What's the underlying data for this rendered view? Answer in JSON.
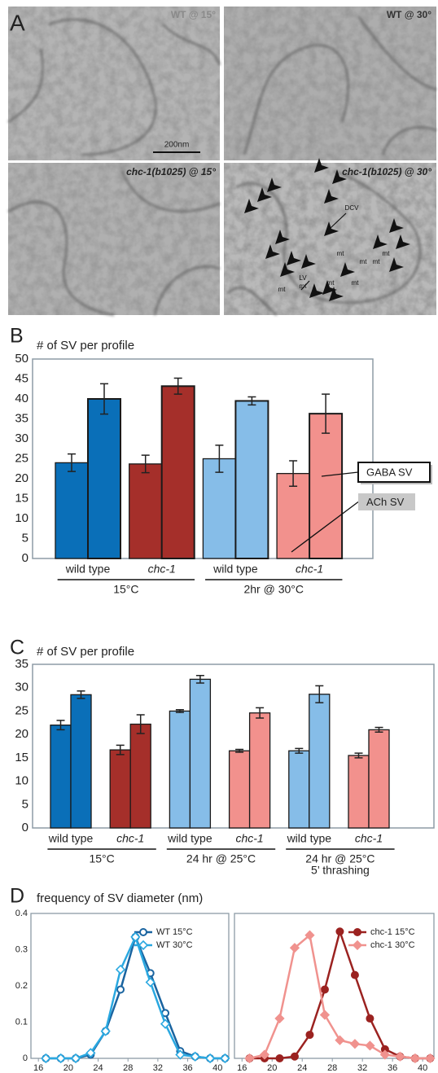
{
  "figure": {
    "panel_labels": [
      "A",
      "B",
      "C",
      "D"
    ]
  },
  "micrographs": {
    "images": [
      "WT @ 15°",
      "WT @ 30°",
      "chc-1(b1025) @ 15°",
      "chc-1(b1025) @ 30°"
    ],
    "scale_bar": "200nm",
    "annotations": [
      "DCV",
      "LV",
      "mt",
      "mt",
      "mt",
      "mt",
      "mt",
      "mt",
      "mt",
      "mt"
    ]
  },
  "chart_data": [
    {
      "type": "bar",
      "title": "# of SV per profile",
      "categories": [
        "wild type",
        "chc-1",
        "wild type",
        "chc-1"
      ],
      "groups": [
        [
          "15°C"
        ],
        [
          "2hr @ 30°C"
        ]
      ],
      "series": [
        {
          "name": "ACh SV",
          "colors": [
            "#0a6fb8",
            "#a52f2a",
            "#86bde8",
            "#f2918d"
          ],
          "values": [
            24,
            23.7,
            25,
            21.3
          ],
          "errors": [
            2.2,
            2.2,
            3.4,
            3.2
          ]
        },
        {
          "name": "GABA SV",
          "colors": [
            "#0a6fb8",
            "#a52f2a",
            "#86bde8",
            "#f2918d"
          ],
          "values": [
            40,
            43.2,
            39.5,
            36.3
          ],
          "errors": [
            3.8,
            2,
            1,
            4.9
          ]
        }
      ],
      "ylim": [
        0,
        50
      ],
      "yticks": [
        0,
        5,
        10,
        15,
        20,
        25,
        30,
        35,
        40,
        45,
        50
      ],
      "legend": "right"
    },
    {
      "type": "bar",
      "title": "# of SV per profile",
      "categories": [
        "wild type",
        "chc-1",
        "wild type",
        "chc-1",
        "wild type",
        "chc-1"
      ],
      "groups": [
        [
          "15°C"
        ],
        [
          "24 hr @ 25°C"
        ],
        [
          "24 hr @ 25°C",
          "5’ thrashing"
        ]
      ],
      "series": [
        {
          "colors": [
            "#0a6fb8",
            "#a52f2a",
            "#86bde8",
            "#f2918d",
            "#86bde8",
            "#f2918d"
          ],
          "values": [
            22,
            16.7,
            25,
            16.5,
            16.5,
            15.5
          ],
          "errors": [
            1,
            1,
            0.3,
            0.3,
            0.5,
            0.5
          ]
        },
        {
          "colors": [
            "#0a6fb8",
            "#a52f2a",
            "#86bde8",
            "#f2918d",
            "#86bde8",
            "#f2918d"
          ],
          "values": [
            28.5,
            22.2,
            31.8,
            24.6,
            28.6,
            21
          ],
          "errors": [
            0.8,
            2,
            0.8,
            1.1,
            1.8,
            0.5
          ]
        }
      ],
      "ylim": [
        0,
        35
      ],
      "yticks": [
        0,
        5,
        10,
        15,
        20,
        25,
        30,
        35
      ]
    },
    {
      "type": "line",
      "title": "frequency of SV diameter (nm)",
      "x": [
        17,
        19,
        21,
        23,
        25,
        27,
        29,
        31,
        33,
        35,
        37,
        39,
        41
      ],
      "series": [
        {
          "name": "WT 15°C",
          "color": "#1a64a0",
          "marker": "circle",
          "filled": false,
          "values": [
            0,
            0,
            0,
            0.01,
            0.075,
            0.19,
            0.335,
            0.235,
            0.125,
            0.02,
            0.005,
            0,
            0
          ]
        },
        {
          "name": "WT 30°C",
          "color": "#2aa8e0",
          "marker": "diamond",
          "filled": false,
          "values": [
            0,
            0,
            0,
            0.015,
            0.075,
            0.245,
            0.335,
            0.21,
            0.095,
            0.01,
            0.005,
            0,
            0
          ]
        }
      ],
      "xlim": [
        15,
        41.5
      ],
      "xticks": [
        16,
        20,
        24,
        28,
        32,
        36,
        40
      ],
      "ylim": [
        0,
        0.4
      ],
      "yticks": [
        0,
        0.1,
        0.2,
        0.3,
        0.4
      ]
    },
    {
      "type": "line",
      "x": [
        17,
        19,
        21,
        23,
        25,
        27,
        29,
        31,
        33,
        35,
        37,
        39,
        41
      ],
      "series": [
        {
          "name": "chc-1 15°C",
          "color": "#9b2220",
          "marker": "circle",
          "filled": true,
          "values": [
            0,
            0,
            0,
            0.005,
            0.065,
            0.19,
            0.35,
            0.23,
            0.11,
            0.025,
            0.005,
            0,
            0
          ]
        },
        {
          "name": "chc-1 30°C",
          "color": "#f0928e",
          "marker": "diamond",
          "filled": true,
          "values": [
            0,
            0.01,
            0.11,
            0.305,
            0.34,
            0.12,
            0.05,
            0.04,
            0.035,
            0.01,
            0.005,
            0,
            0
          ]
        }
      ],
      "xlim": [
        15,
        41.5
      ],
      "xticks": [
        16,
        20,
        24,
        28,
        32,
        36,
        40
      ],
      "ylim": [
        0,
        0.4
      ]
    }
  ]
}
